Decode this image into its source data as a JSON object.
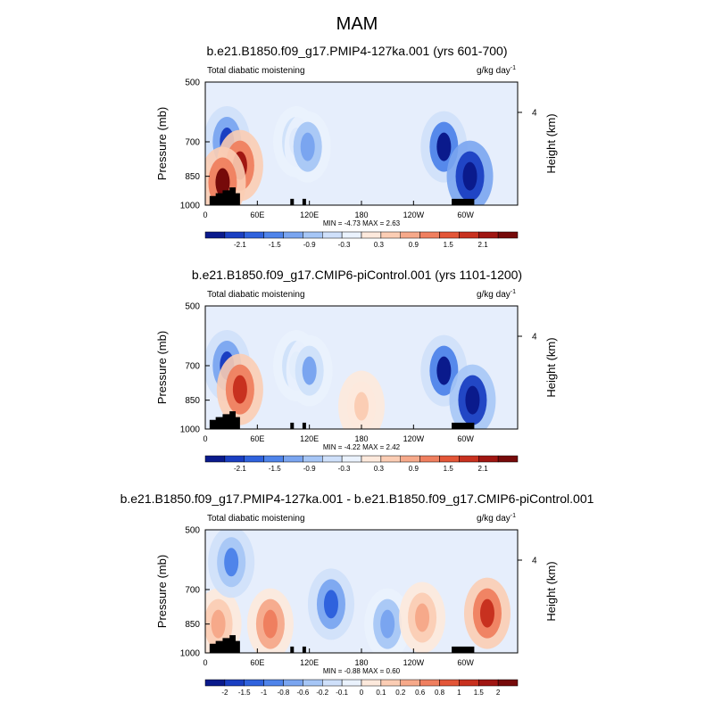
{
  "page_title": "MAM",
  "chart_data": [
    {
      "type": "heatmap",
      "title": "b.e21.B1850.f09_g17.PMIP4-127ka.001 (yrs 601-700)",
      "subtitle_left": "Total diabatic moistening",
      "units": "g/kg day",
      "units_exp": "-1",
      "ylabel": "Pressure (mb)",
      "ylabel_right": "Height (km)",
      "right_ticks": [
        "4"
      ],
      "y_ticks": [
        "500",
        "700",
        "850",
        "1000"
      ],
      "x_ticks": [
        "0",
        "60E",
        "120E",
        "180",
        "120W",
        "60W"
      ],
      "ylim": [
        1000,
        500
      ],
      "stats": "MIN =  -4.73  MAX =   2.63",
      "colorbar_labels": [
        "-2.1",
        "-1.5",
        "-0.9",
        "-0.3",
        "0.3",
        "0.9",
        "1.5",
        "2.1"
      ],
      "colorbar_colors": [
        "#0a1a8c",
        "#1a3fc2",
        "#2f62dd",
        "#4f84ea",
        "#7aa5f0",
        "#a6c6f6",
        "#cfe0fa",
        "#eaf2fd",
        "#fde9dc",
        "#fbcdb4",
        "#f6a98a",
        "#ef7f5f",
        "#e35638",
        "#c8311f",
        "#a01612",
        "#760a0a"
      ],
      "features": [
        {
          "lon": 25,
          "p": 700,
          "value": -2.5
        },
        {
          "lon": 40,
          "p": 800,
          "value": 2.3
        },
        {
          "lon": 105,
          "p": 700,
          "value": -1.2
        },
        {
          "lon": 118,
          "p": 720,
          "value": -1.4
        },
        {
          "lon": 275,
          "p": 720,
          "value": -3.0
        },
        {
          "lon": 305,
          "p": 850,
          "value": -4.73
        },
        {
          "lon": 20,
          "p": 880,
          "value": 2.63
        }
      ]
    },
    {
      "type": "heatmap",
      "title": "b.e21.B1850.f09_g17.CMIP6-piControl.001 (yrs 1101-1200)",
      "subtitle_left": "Total diabatic moistening",
      "units": "g/kg day",
      "units_exp": "-1",
      "ylabel": "Pressure (mb)",
      "ylabel_right": "Height (km)",
      "right_ticks": [
        "4"
      ],
      "y_ticks": [
        "500",
        "700",
        "850",
        "1000"
      ],
      "x_ticks": [
        "0",
        "60E",
        "120E",
        "180",
        "120W",
        "60W"
      ],
      "ylim": [
        1000,
        500
      ],
      "stats": "MIN =  -4.22  MAX =   2.42",
      "colorbar_labels": [
        "-2.1",
        "-1.5",
        "-0.9",
        "-0.3",
        "0.3",
        "0.9",
        "1.5",
        "2.1"
      ],
      "colorbar_colors": [
        "#0a1a8c",
        "#1a3fc2",
        "#2f62dd",
        "#4f84ea",
        "#7aa5f0",
        "#a6c6f6",
        "#cfe0fa",
        "#eaf2fd",
        "#fde9dc",
        "#fbcdb4",
        "#f6a98a",
        "#ef7f5f",
        "#e35638",
        "#c8311f",
        "#a01612",
        "#760a0a"
      ],
      "features": [
        {
          "lon": 25,
          "p": 700,
          "value": -2.3
        },
        {
          "lon": 40,
          "p": 800,
          "value": 2.1
        },
        {
          "lon": 105,
          "p": 700,
          "value": -1.0
        },
        {
          "lon": 120,
          "p": 720,
          "value": -1.2
        },
        {
          "lon": 275,
          "p": 720,
          "value": -2.8
        },
        {
          "lon": 308,
          "p": 850,
          "value": -4.22
        },
        {
          "lon": 180,
          "p": 880,
          "value": 0.5
        }
      ]
    },
    {
      "type": "heatmap",
      "title": "b.e21.B1850.f09_g17.PMIP4-127ka.001 - b.e21.B1850.f09_g17.CMIP6-piControl.001",
      "subtitle_left": "Total diabatic moistening",
      "units": "g/kg day",
      "units_exp": "-1",
      "ylabel": "Pressure (mb)",
      "ylabel_right": "Height (km)",
      "right_ticks": [
        "4"
      ],
      "y_ticks": [
        "500",
        "700",
        "850",
        "1000"
      ],
      "x_ticks": [
        "0",
        "60E",
        "120E",
        "180",
        "120W",
        "60W"
      ],
      "ylim": [
        1000,
        500
      ],
      "stats": "MIN =  -0.88  MAX =   0.60",
      "colorbar_labels": [
        "-2",
        "-1.5",
        "-1",
        "-0.8",
        "-0.6",
        "-0.2",
        "-0.1",
        "0",
        "0.1",
        "0.2",
        "0.6",
        "0.8",
        "1",
        "1.5",
        "2"
      ],
      "colorbar_colors": [
        "#0a1a8c",
        "#1a3fc2",
        "#2f62dd",
        "#4f84ea",
        "#7aa5f0",
        "#a6c6f6",
        "#cfe0fa",
        "#eaf2fd",
        "#fde9dc",
        "#fbcdb4",
        "#f6a98a",
        "#ef7f5f",
        "#e35638",
        "#c8311f",
        "#a01612",
        "#760a0a"
      ],
      "features": [
        {
          "lon": 15,
          "p": 850,
          "value": 0.3
        },
        {
          "lon": 30,
          "p": 600,
          "value": -0.5
        },
        {
          "lon": 75,
          "p": 850,
          "value": 0.4
        },
        {
          "lon": 145,
          "p": 760,
          "value": -0.6
        },
        {
          "lon": 210,
          "p": 850,
          "value": -0.4
        },
        {
          "lon": 250,
          "p": 820,
          "value": 0.3
        },
        {
          "lon": 325,
          "p": 800,
          "value": 0.6
        }
      ]
    }
  ]
}
